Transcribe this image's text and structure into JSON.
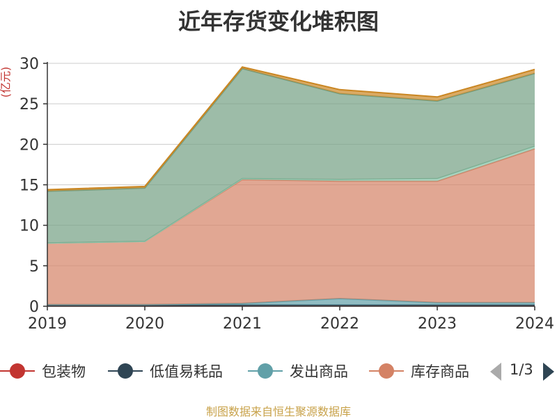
{
  "chart_data": {
    "type": "area",
    "stacked": true,
    "title": "近年存货变化堆积图",
    "unit_label": "(亿元)",
    "x": [
      "2019",
      "2020",
      "2021",
      "2022",
      "2023",
      "2024"
    ],
    "ylim": [
      0,
      30
    ],
    "yticks": [
      0,
      5,
      10,
      15,
      20,
      25,
      30
    ],
    "grid": true,
    "series": [
      {
        "name": "包装物",
        "color": "#c23531",
        "values": [
          0.1,
          0.1,
          0.1,
          0.1,
          0.1,
          0.1
        ]
      },
      {
        "name": "低值易耗品",
        "color": "#2f4554",
        "values": [
          0.05,
          0.05,
          0.05,
          0.05,
          0.05,
          0.05
        ]
      },
      {
        "name": "发出商品",
        "color": "#61a0a8",
        "values": [
          0.05,
          0.05,
          0.2,
          0.8,
          0.3,
          0.3
        ]
      },
      {
        "name": "库存商品",
        "color": "#d48265",
        "values": [
          7.6,
          7.8,
          15.3,
          14.5,
          15.0,
          19.0
        ]
      },
      {
        "name": "",
        "color": "#91c7ae",
        "values": [
          0.0,
          0.0,
          0.1,
          0.2,
          0.3,
          0.3
        ]
      },
      {
        "name": "",
        "color": "#749f83",
        "values": [
          6.4,
          6.6,
          13.6,
          10.6,
          9.6,
          9.0
        ]
      },
      {
        "name": "",
        "color": "#ca8622",
        "values": [
          0.2,
          0.2,
          0.2,
          0.5,
          0.5,
          0.5
        ]
      }
    ],
    "legend_position": "bottom"
  },
  "legend": {
    "items": [
      {
        "label": "包装物",
        "color": "#c23531"
      },
      {
        "label": "低值易耗品",
        "color": "#2f4554"
      },
      {
        "label": "发出商品",
        "color": "#61a0a8"
      },
      {
        "label": "库存商品",
        "color": "#d48265"
      }
    ],
    "page_text": "1/3"
  },
  "source": "制图数据来自恒生聚源数据库"
}
